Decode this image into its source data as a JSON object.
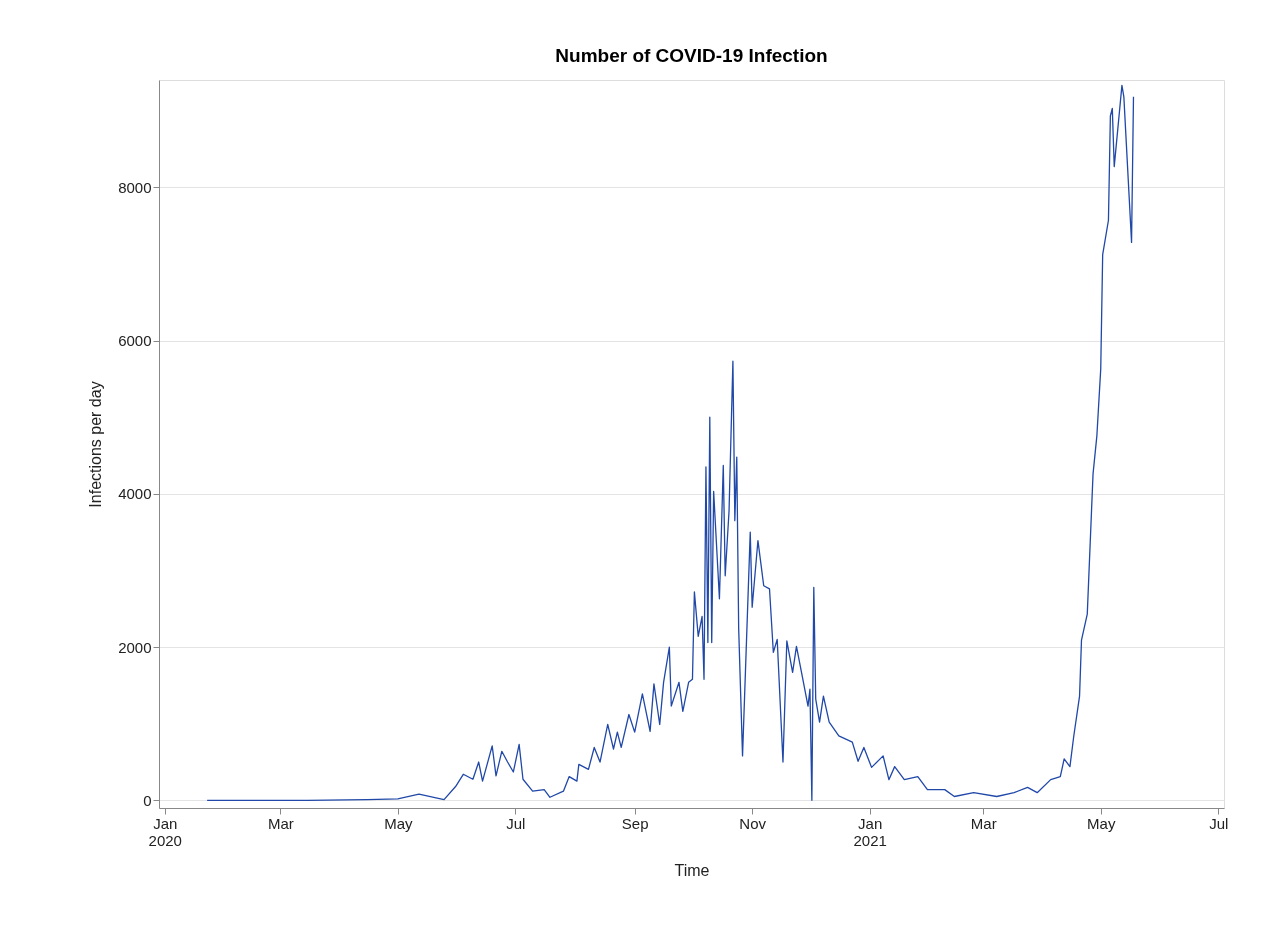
{
  "chart_data": {
    "type": "line",
    "title": "Number of COVID-19 Infection",
    "xlabel": "Time",
    "ylabel": "Infections per day",
    "x": [
      "2020-01-23",
      "2020-03-15",
      "2020-04-15",
      "2020-05-01",
      "2020-05-12",
      "2020-05-25",
      "2020-05-31",
      "2020-06-04",
      "2020-06-09",
      "2020-06-12",
      "2020-06-14",
      "2020-06-19",
      "2020-06-21",
      "2020-06-24",
      "2020-06-27",
      "2020-06-30",
      "2020-07-03",
      "2020-07-05",
      "2020-07-10",
      "2020-07-16",
      "2020-07-19",
      "2020-07-26",
      "2020-07-29",
      "2020-08-02",
      "2020-08-03",
      "2020-08-08",
      "2020-08-11",
      "2020-08-14",
      "2020-08-18",
      "2020-08-21",
      "2020-08-23",
      "2020-08-25",
      "2020-08-29",
      "2020-09-01",
      "2020-09-05",
      "2020-09-09",
      "2020-09-11",
      "2020-09-14",
      "2020-09-16",
      "2020-09-19",
      "2020-09-20",
      "2020-09-24",
      "2020-09-26",
      "2020-09-29",
      "2020-10-01",
      "2020-10-02",
      "2020-10-04",
      "2020-10-06",
      "2020-10-07",
      "2020-10-08",
      "2020-10-09",
      "2020-10-10",
      "2020-10-11",
      "2020-10-12",
      "2020-10-15",
      "2020-10-17",
      "2020-10-18",
      "2020-10-20",
      "2020-10-22",
      "2020-10-23",
      "2020-10-24",
      "2020-10-25",
      "2020-10-27",
      "2020-10-31",
      "2020-11-01",
      "2020-11-04",
      "2020-11-07",
      "2020-11-10",
      "2020-11-12",
      "2020-11-14",
      "2020-11-17",
      "2020-11-19",
      "2020-11-22",
      "2020-11-24",
      "2020-11-27",
      "2020-11-30",
      "2020-12-01",
      "2020-12-02",
      "2020-12-03",
      "2020-12-04",
      "2020-12-06",
      "2020-12-08",
      "2020-12-11",
      "2020-12-16",
      "2020-12-23",
      "2020-12-26",
      "2020-12-29",
      "2021-01-02",
      "2021-01-08",
      "2021-01-11",
      "2021-01-14",
      "2021-01-19",
      "2021-01-26",
      "2021-01-31",
      "2021-02-09",
      "2021-02-14",
      "2021-02-24",
      "2021-03-08",
      "2021-03-17",
      "2021-03-24",
      "2021-03-29",
      "2021-04-05",
      "2021-04-10",
      "2021-04-12",
      "2021-04-15",
      "2021-04-17",
      "2021-04-20",
      "2021-04-21",
      "2021-04-24",
      "2021-04-27",
      "2021-04-29",
      "2021-05-01",
      "2021-05-02",
      "2021-05-05",
      "2021-05-06",
      "2021-05-07",
      "2021-05-08",
      "2021-05-12",
      "2021-05-13",
      "2021-05-17",
      "2021-05-18"
    ],
    "series": [
      {
        "color": "#2048a8",
        "values": [
          0,
          0,
          10,
          20,
          80,
          10,
          180,
          340,
          275,
          500,
          250,
          710,
          320,
          640,
          500,
          370,
          730,
          275,
          120,
          140,
          40,
          120,
          310,
          250,
          470,
          405,
          690,
          500,
          990,
          670,
          890,
          690,
          1120,
          890,
          1390,
          900,
          1520,
          990,
          1540,
          2000,
          1230,
          1540,
          1160,
          1540,
          1580,
          2720,
          2140,
          2400,
          1580,
          4350,
          2060,
          5000,
          2060,
          4030,
          2630,
          4370,
          2930,
          3780,
          5730,
          3650,
          4480,
          2240,
          580,
          3500,
          2520,
          3390,
          2800,
          2760,
          1930,
          2100,
          500,
          2080,
          1670,
          2010,
          1620,
          1230,
          1450,
          0,
          2780,
          1320,
          1020,
          1360,
          1020,
          840,
          760,
          510,
          690,
          430,
          580,
          270,
          440,
          270,
          310,
          140,
          140,
          50,
          100,
          50,
          100,
          170,
          100,
          270,
          310,
          540,
          440,
          840,
          1360,
          2090,
          2430,
          4260,
          4760,
          5630,
          7120,
          7570,
          8930,
          9030,
          8270,
          9330,
          9180,
          7280,
          9180
        ]
      }
    ],
    "xlim": [
      "2019-12-29",
      "2021-07-04"
    ],
    "xticks": [
      {
        "value": "2020-01-01",
        "label": "Jan\n2020"
      },
      {
        "value": "2020-03-01",
        "label": "Mar"
      },
      {
        "value": "2020-05-01",
        "label": "May"
      },
      {
        "value": "2020-07-01",
        "label": "Jul"
      },
      {
        "value": "2020-09-01",
        "label": "Sep"
      },
      {
        "value": "2020-11-01",
        "label": "Nov"
      },
      {
        "value": "2021-01-01",
        "label": "Jan\n2021"
      },
      {
        "value": "2021-03-01",
        "label": "Mar"
      },
      {
        "value": "2021-05-01",
        "label": "May"
      },
      {
        "value": "2021-07-01",
        "label": "Jul"
      }
    ],
    "ylim": [
      -100,
      9400
    ],
    "yticks": [
      0,
      2000,
      4000,
      6000,
      8000
    ],
    "grid": "y",
    "marker": "none",
    "line_style": "solid"
  }
}
